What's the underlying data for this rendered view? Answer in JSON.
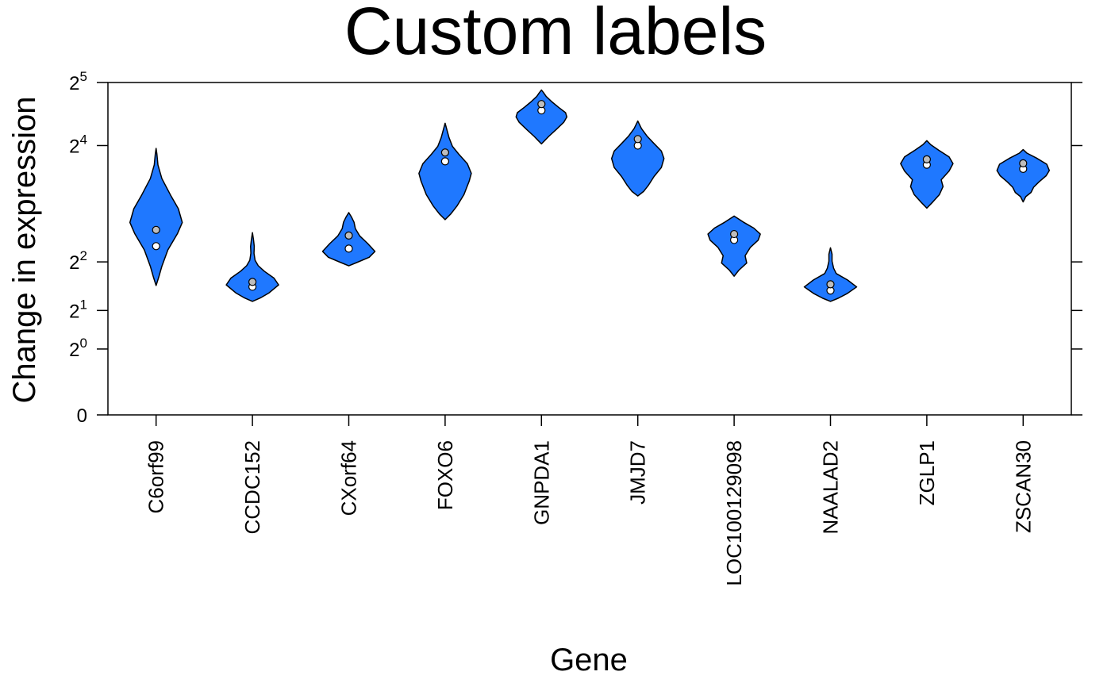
{
  "chart_data": {
    "type": "violin",
    "title": "Custom labels",
    "xlabel": "Gene",
    "ylabel": "Change in expression",
    "y_scale": "log2(1+y)",
    "y_ticks": [
      {
        "value": 0,
        "base": "0",
        "exp": ""
      },
      {
        "value": 1,
        "base": "2",
        "exp": "0"
      },
      {
        "value": 2,
        "base": "2",
        "exp": "1"
      },
      {
        "value": 4,
        "base": "2",
        "exp": "2"
      },
      {
        "value": 16,
        "base": "2",
        "exp": "4"
      },
      {
        "value": 32,
        "base": "2",
        "exp": "5"
      }
    ],
    "ylim": [
      0,
      32
    ],
    "fill_color": "#1f78ff",
    "categories": [
      "C6orf99",
      "CCDC152",
      "CXorf64",
      "FOXO6",
      "GNPDA1",
      "JMJD7",
      "LOC100129098",
      "NAALAD2",
      "ZGLP1",
      "ZSCAN30"
    ],
    "violins": [
      {
        "gene": "C6orf99",
        "min": 2.9,
        "max": 15.5,
        "median": 4.9,
        "mean": 6.0,
        "shape": [
          [
            0,
            0.0
          ],
          [
            0.06,
            0.1
          ],
          [
            0.14,
            0.22
          ],
          [
            0.26,
            0.45
          ],
          [
            0.38,
            0.82
          ],
          [
            0.46,
            1.0
          ],
          [
            0.56,
            0.85
          ],
          [
            0.66,
            0.55
          ],
          [
            0.78,
            0.22
          ],
          [
            0.88,
            0.07
          ],
          [
            0.96,
            0.03
          ],
          [
            1,
            0.0
          ]
        ]
      },
      {
        "gene": "CCDC152",
        "min": 2.3,
        "max": 5.8,
        "median": 2.85,
        "mean": 3.05,
        "shape": [
          [
            0,
            0.0
          ],
          [
            0.05,
            0.3
          ],
          [
            0.12,
            0.62
          ],
          [
            0.24,
            1.0
          ],
          [
            0.34,
            0.82
          ],
          [
            0.44,
            0.45
          ],
          [
            0.52,
            0.22
          ],
          [
            0.6,
            0.1
          ],
          [
            0.7,
            0.06
          ],
          [
            0.8,
            0.07
          ],
          [
            0.9,
            0.04
          ],
          [
            1,
            0.0
          ]
        ]
      },
      {
        "gene": "CXorf64",
        "min": 3.8,
        "max": 7.4,
        "median": 4.75,
        "mean": 5.6,
        "shape": [
          [
            0,
            0.0
          ],
          [
            0.06,
            0.3
          ],
          [
            0.16,
            0.78
          ],
          [
            0.27,
            1.0
          ],
          [
            0.42,
            0.72
          ],
          [
            0.56,
            0.42
          ],
          [
            0.7,
            0.25
          ],
          [
            0.82,
            0.2
          ],
          [
            0.92,
            0.1
          ],
          [
            1,
            0.0
          ]
        ]
      },
      {
        "gene": "FOXO6",
        "min": 6.8,
        "max": 20.5,
        "median": 13.4,
        "mean": 14.8,
        "shape": [
          [
            0,
            0.0
          ],
          [
            0.06,
            0.22
          ],
          [
            0.14,
            0.45
          ],
          [
            0.26,
            0.72
          ],
          [
            0.4,
            0.92
          ],
          [
            0.48,
            1.0
          ],
          [
            0.58,
            0.85
          ],
          [
            0.68,
            0.52
          ],
          [
            0.76,
            0.28
          ],
          [
            0.85,
            0.15
          ],
          [
            0.93,
            0.07
          ],
          [
            1,
            0.0
          ]
        ]
      },
      {
        "gene": "GNPDA1",
        "min": 16.3,
        "max": 29.5,
        "median": 23.6,
        "mean": 25.3,
        "shape": [
          [
            0,
            0.0
          ],
          [
            0.06,
            0.12
          ],
          [
            0.14,
            0.28
          ],
          [
            0.26,
            0.55
          ],
          [
            0.4,
            0.85
          ],
          [
            0.5,
            0.97
          ],
          [
            0.58,
            0.92
          ],
          [
            0.68,
            0.65
          ],
          [
            0.78,
            0.4
          ],
          [
            0.88,
            0.18
          ],
          [
            0.95,
            0.08
          ],
          [
            1,
            0.0
          ]
        ]
      },
      {
        "gene": "JMJD7",
        "min": 9.0,
        "max": 21.0,
        "median": 16.0,
        "mean": 17.2,
        "shape": [
          [
            0,
            0.0
          ],
          [
            0.06,
            0.22
          ],
          [
            0.14,
            0.4
          ],
          [
            0.26,
            0.62
          ],
          [
            0.38,
            0.9
          ],
          [
            0.5,
            1.0
          ],
          [
            0.6,
            0.9
          ],
          [
            0.7,
            0.62
          ],
          [
            0.8,
            0.35
          ],
          [
            0.9,
            0.14
          ],
          [
            1,
            0.0
          ]
        ]
      },
      {
        "gene": "LOC100129098",
        "min": 3.3,
        "max": 7.1,
        "median": 5.3,
        "mean": 5.7,
        "shape": [
          [
            0,
            0.0
          ],
          [
            0.1,
            0.18
          ],
          [
            0.22,
            0.48
          ],
          [
            0.34,
            0.42
          ],
          [
            0.48,
            0.62
          ],
          [
            0.6,
            0.92
          ],
          [
            0.7,
            1.0
          ],
          [
            0.8,
            0.75
          ],
          [
            0.9,
            0.35
          ],
          [
            1,
            0.0
          ]
        ]
      },
      {
        "gene": "NAALAD2",
        "min": 2.3,
        "max": 4.8,
        "median": 2.7,
        "mean": 2.95,
        "shape": [
          [
            0,
            0.0
          ],
          [
            0.06,
            0.3
          ],
          [
            0.15,
            0.65
          ],
          [
            0.27,
            1.0
          ],
          [
            0.4,
            0.65
          ],
          [
            0.52,
            0.22
          ],
          [
            0.62,
            0.12
          ],
          [
            0.75,
            0.06
          ],
          [
            0.88,
            0.06
          ],
          [
            1,
            0.0
          ]
        ]
      },
      {
        "gene": "ZGLP1",
        "min": 7.8,
        "max": 16.9,
        "median": 12.9,
        "mean": 13.7,
        "shape": [
          [
            0,
            0.0
          ],
          [
            0.08,
            0.2
          ],
          [
            0.2,
            0.48
          ],
          [
            0.32,
            0.62
          ],
          [
            0.42,
            0.55
          ],
          [
            0.55,
            0.85
          ],
          [
            0.66,
            1.0
          ],
          [
            0.76,
            0.85
          ],
          [
            0.86,
            0.45
          ],
          [
            0.94,
            0.15
          ],
          [
            1,
            0.0
          ]
        ]
      },
      {
        "gene": "ZSCAN30",
        "min": 8.4,
        "max": 15.3,
        "median": 12.3,
        "mean": 13.1,
        "shape": [
          [
            0,
            0.0
          ],
          [
            0.1,
            0.1
          ],
          [
            0.18,
            0.3
          ],
          [
            0.28,
            0.4
          ],
          [
            0.38,
            0.6
          ],
          [
            0.5,
            0.88
          ],
          [
            0.6,
            1.0
          ],
          [
            0.72,
            0.9
          ],
          [
            0.84,
            0.5
          ],
          [
            0.93,
            0.15
          ],
          [
            1,
            0.0
          ]
        ]
      }
    ]
  }
}
